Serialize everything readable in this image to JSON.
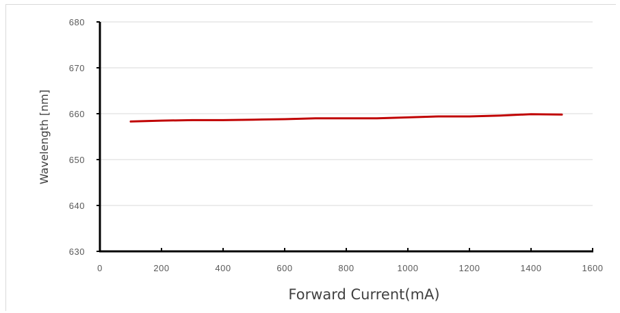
{
  "chart_data": {
    "type": "line",
    "title": "",
    "xlabel": "Forward Current(mA)",
    "ylabel": "Wavelength [nm]",
    "xlim": [
      0,
      1600
    ],
    "ylim": [
      630,
      680
    ],
    "xticks": [
      0,
      200,
      400,
      600,
      800,
      1000,
      1200,
      1400,
      1600
    ],
    "yticks": [
      630,
      640,
      650,
      660,
      670,
      680
    ],
    "grid": "horizontal",
    "legend": "none",
    "series": [
      {
        "color": "#c00000",
        "x": [
          100,
          200,
          300,
          400,
          500,
          600,
          700,
          800,
          900,
          1000,
          1100,
          1200,
          1300,
          1400,
          1500
        ],
        "y": [
          658.3,
          658.5,
          658.6,
          658.6,
          658.7,
          658.8,
          659.0,
          659.0,
          659.0,
          659.2,
          659.4,
          659.4,
          659.6,
          659.9,
          659.8
        ]
      }
    ]
  }
}
